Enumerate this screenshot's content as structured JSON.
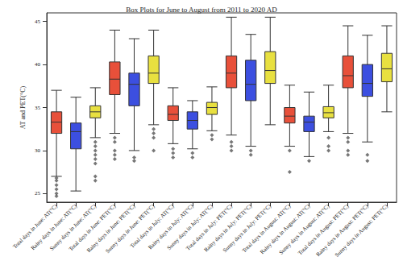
{
  "chart_data": {
    "type": "boxplot",
    "title": "Box Plots for June to August from 2011 to 2020 AD",
    "y_label": "AT and PET(°C)",
    "categories": [
      "Total days in June: AT(°C)",
      "Rainy days in June: AT(°C)",
      "Sunny days in June: AT(°C)",
      "Total days in June: PET(°C)",
      "Rainy days in June: PET(°C)",
      "Sunny days in June: PET(°C)",
      "Total days in July: AT(°C)",
      "Rainy days in July: AT(°C)",
      "Sunny days in July: AT(°C)",
      "Total days in July: PET(°C)",
      "Rainy days in July: PET(°C)",
      "Sunny days in July: PET(°C)",
      "Total days in August: AT(°C)",
      "Rainy days in August: AT(°C)",
      "Sunny days in August: AT(°C)",
      "Total days in August: PET(°C)",
      "Rainy days in August: PET(°C)",
      "Sunny days in August: PET(°C)"
    ],
    "boxes": [
      [
        27,
        32,
        33.3,
        34.5,
        37
      ],
      [
        25.3,
        30.2,
        32.2,
        33.2,
        36.2
      ],
      [
        31.5,
        33.8,
        34.5,
        35.2,
        37.3
      ],
      [
        32,
        36.5,
        38.3,
        40.3,
        44
      ],
      [
        30,
        35.2,
        37.7,
        39,
        43
      ],
      [
        33,
        37.8,
        39,
        41,
        44
      ],
      [
        30.8,
        33.5,
        34.2,
        35.2,
        37.3
      ],
      [
        30.2,
        32.5,
        33.5,
        34.5,
        35.8
      ],
      [
        32.3,
        34.2,
        35,
        35.6,
        37.4
      ],
      [
        31.8,
        37.3,
        39,
        41,
        45.5
      ],
      [
        30.5,
        35.8,
        37.7,
        40.5,
        43.5
      ],
      [
        33,
        37.8,
        39.3,
        41.5,
        45.5
      ],
      [
        30.5,
        33.2,
        34,
        35,
        37.6
      ],
      [
        29.3,
        32.2,
        33.3,
        34,
        36.8
      ],
      [
        32.2,
        33.8,
        34.4,
        35.1,
        37.6
      ],
      [
        32,
        37.3,
        38.7,
        41,
        44.5
      ],
      [
        31,
        36.3,
        37.8,
        40,
        43.4
      ],
      [
        34.5,
        38,
        39.5,
        41.3,
        44.5
      ]
    ],
    "outliers": [
      [
        26.8,
        26.5,
        26,
        25.5,
        25,
        24.7
      ],
      [],
      [
        31,
        30.5,
        30,
        29.5,
        29,
        28.5,
        27,
        26.5
      ],
      [
        31.5,
        31,
        30,
        29.5,
        29
      ],
      [
        29.2,
        28.8
      ],
      [
        32.5,
        32,
        31.5,
        30
      ],
      [
        30.2,
        29.7,
        29.2
      ],
      [
        29.7,
        29.2
      ],
      [
        31.8,
        31.3
      ],
      [
        31,
        30.5,
        30
      ],
      [
        30,
        29.5
      ],
      [],
      [
        30,
        27.5
      ],
      [
        28.8
      ],
      [
        31.5,
        30.5,
        30
      ],
      [
        31.5,
        31,
        30,
        29.5
      ],
      [
        29.5,
        28.8
      ],
      []
    ],
    "colors": [
      "#e8503a",
      "#3c4fe0",
      "#e8e040",
      "#e8503a",
      "#3c4fe0",
      "#e8e040",
      "#e8503a",
      "#3c4fe0",
      "#e8e040",
      "#e8503a",
      "#3c4fe0",
      "#e8e040",
      "#e8503a",
      "#3c4fe0",
      "#e8e040",
      "#e8503a",
      "#3c4fe0",
      "#e8e040"
    ],
    "ylim": [
      24,
      46
    ],
    "yticks": [
      25,
      30,
      35,
      40,
      45
    ],
    "grid": false
  }
}
